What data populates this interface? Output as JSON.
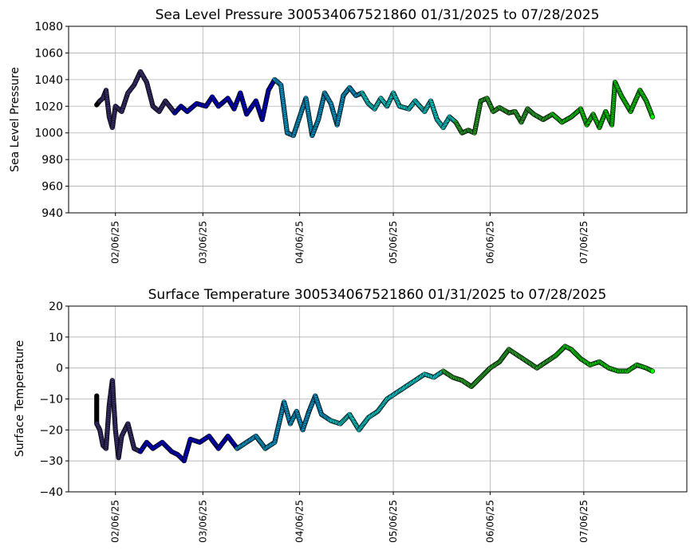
{
  "chart_data": [
    {
      "type": "scatter",
      "title": "Sea Level Pressure 300534067521860  01/31/2025 to 07/28/2025",
      "xlabel": "",
      "ylabel": "Sea Level Pressure",
      "ylim": [
        940,
        1080
      ],
      "yticks": [
        940,
        960,
        980,
        1000,
        1020,
        1040,
        1060,
        1080
      ],
      "xlim": [
        "2025-01-22",
        "2025-08-08"
      ],
      "xticks": [
        "2025-02-06",
        "2025-03-06",
        "2025-04-06",
        "2025-05-06",
        "2025-06-06",
        "2025-07-06"
      ],
      "xtick_labels": [
        "02/06/25",
        "03/06/25",
        "04/06/25",
        "05/06/25",
        "06/06/25",
        "07/06/25"
      ],
      "grid": true,
      "colors": [
        "#000000",
        "#483d8b",
        "#0000ff",
        "#00bfff",
        "#00ffff",
        "#32cd32",
        "#00ff00"
      ],
      "points": [
        [
          "2025-01-31",
          1021
        ],
        [
          "2025-02-01",
          1024
        ],
        [
          "2025-02-02",
          1026
        ],
        [
          "2025-02-03",
          1032
        ],
        [
          "2025-02-04",
          1012
        ],
        [
          "2025-02-05",
          1004
        ],
        [
          "2025-02-06",
          1020
        ],
        [
          "2025-02-08",
          1016
        ],
        [
          "2025-02-10",
          1030
        ],
        [
          "2025-02-12",
          1036
        ],
        [
          "2025-02-14",
          1046
        ],
        [
          "2025-02-16",
          1038
        ],
        [
          "2025-02-18",
          1020
        ],
        [
          "2025-02-20",
          1016
        ],
        [
          "2025-02-22",
          1024
        ],
        [
          "2025-02-25",
          1015
        ],
        [
          "2025-02-27",
          1020
        ],
        [
          "2025-03-01",
          1016
        ],
        [
          "2025-03-04",
          1022
        ],
        [
          "2025-03-07",
          1020
        ],
        [
          "2025-03-09",
          1027
        ],
        [
          "2025-03-11",
          1020
        ],
        [
          "2025-03-14",
          1026
        ],
        [
          "2025-03-16",
          1018
        ],
        [
          "2025-03-18",
          1030
        ],
        [
          "2025-03-20",
          1014
        ],
        [
          "2025-03-23",
          1024
        ],
        [
          "2025-03-25",
          1010
        ],
        [
          "2025-03-27",
          1032
        ],
        [
          "2025-03-29",
          1040
        ],
        [
          "2025-03-31",
          1036
        ],
        [
          "2025-04-02",
          1000
        ],
        [
          "2025-04-04",
          998
        ],
        [
          "2025-04-06",
          1012
        ],
        [
          "2025-04-08",
          1026
        ],
        [
          "2025-04-10",
          998
        ],
        [
          "2025-04-12",
          1010
        ],
        [
          "2025-04-14",
          1030
        ],
        [
          "2025-04-16",
          1022
        ],
        [
          "2025-04-18",
          1006
        ],
        [
          "2025-04-20",
          1028
        ],
        [
          "2025-04-22",
          1034
        ],
        [
          "2025-04-24",
          1028
        ],
        [
          "2025-04-26",
          1030
        ],
        [
          "2025-04-28",
          1022
        ],
        [
          "2025-04-30",
          1018
        ],
        [
          "2025-05-02",
          1026
        ],
        [
          "2025-05-04",
          1020
        ],
        [
          "2025-05-06",
          1030
        ],
        [
          "2025-05-08",
          1020
        ],
        [
          "2025-05-11",
          1018
        ],
        [
          "2025-05-13",
          1024
        ],
        [
          "2025-05-16",
          1016
        ],
        [
          "2025-05-18",
          1024
        ],
        [
          "2025-05-20",
          1010
        ],
        [
          "2025-05-22",
          1004
        ],
        [
          "2025-05-24",
          1012
        ],
        [
          "2025-05-26",
          1008
        ],
        [
          "2025-05-28",
          1000
        ],
        [
          "2025-05-30",
          1002
        ],
        [
          "2025-06-01",
          1000
        ],
        [
          "2025-06-03",
          1024
        ],
        [
          "2025-06-05",
          1026
        ],
        [
          "2025-06-07",
          1016
        ],
        [
          "2025-06-09",
          1019
        ],
        [
          "2025-06-12",
          1015
        ],
        [
          "2025-06-14",
          1016
        ],
        [
          "2025-06-16",
          1008
        ],
        [
          "2025-06-18",
          1018
        ],
        [
          "2025-06-20",
          1014
        ],
        [
          "2025-06-23",
          1010
        ],
        [
          "2025-06-26",
          1014
        ],
        [
          "2025-06-29",
          1008
        ],
        [
          "2025-07-02",
          1012
        ],
        [
          "2025-07-05",
          1018
        ],
        [
          "2025-07-07",
          1006
        ],
        [
          "2025-07-09",
          1014
        ],
        [
          "2025-07-11",
          1004
        ],
        [
          "2025-07-13",
          1016
        ],
        [
          "2025-07-15",
          1006
        ],
        [
          "2025-07-16",
          1038
        ],
        [
          "2025-07-18",
          1028
        ],
        [
          "2025-07-21",
          1016
        ],
        [
          "2025-07-24",
          1032
        ],
        [
          "2025-07-26",
          1024
        ],
        [
          "2025-07-28",
          1012
        ]
      ]
    },
    {
      "type": "scatter",
      "title": "Surface Temperature 300534067521860  01/31/2025 to 07/28/2025",
      "xlabel": "",
      "ylabel": "Surface Temperature",
      "ylim": [
        -40,
        20
      ],
      "yticks": [
        -40,
        -30,
        -20,
        -10,
        0,
        10,
        20
      ],
      "xlim": [
        "2025-01-22",
        "2025-08-08"
      ],
      "xticks": [
        "2025-02-06",
        "2025-03-06",
        "2025-04-06",
        "2025-05-06",
        "2025-06-06",
        "2025-07-06"
      ],
      "xtick_labels": [
        "02/06/25",
        "03/06/25",
        "04/06/25",
        "05/06/25",
        "06/06/25",
        "07/06/25"
      ],
      "grid": true,
      "colors": [
        "#000000",
        "#483d8b",
        "#0000ff",
        "#00bfff",
        "#00ffff",
        "#32cd32",
        "#00ff00"
      ],
      "points": [
        [
          "2025-01-31",
          -9
        ],
        [
          "2025-01-31",
          -18
        ],
        [
          "2025-02-01",
          -20
        ],
        [
          "2025-02-02",
          -25
        ],
        [
          "2025-02-03",
          -26
        ],
        [
          "2025-02-04",
          -12
        ],
        [
          "2025-02-05",
          -4
        ],
        [
          "2025-02-06",
          -20
        ],
        [
          "2025-02-07",
          -29
        ],
        [
          "2025-02-08",
          -22
        ],
        [
          "2025-02-10",
          -18
        ],
        [
          "2025-02-12",
          -26
        ],
        [
          "2025-02-14",
          -27
        ],
        [
          "2025-02-16",
          -24
        ],
        [
          "2025-02-18",
          -26
        ],
        [
          "2025-02-21",
          -24
        ],
        [
          "2025-02-24",
          -27
        ],
        [
          "2025-02-26",
          -28
        ],
        [
          "2025-02-28",
          -30
        ],
        [
          "2025-03-02",
          -23
        ],
        [
          "2025-03-05",
          -24
        ],
        [
          "2025-03-08",
          -22
        ],
        [
          "2025-03-11",
          -26
        ],
        [
          "2025-03-14",
          -22
        ],
        [
          "2025-03-17",
          -26
        ],
        [
          "2025-03-20",
          -24
        ],
        [
          "2025-03-23",
          -22
        ],
        [
          "2025-03-26",
          -26
        ],
        [
          "2025-03-29",
          -24
        ],
        [
          "2025-04-01",
          -11
        ],
        [
          "2025-04-03",
          -18
        ],
        [
          "2025-04-05",
          -14
        ],
        [
          "2025-04-07",
          -20
        ],
        [
          "2025-04-09",
          -14
        ],
        [
          "2025-04-11",
          -9
        ],
        [
          "2025-04-13",
          -15
        ],
        [
          "2025-04-16",
          -17
        ],
        [
          "2025-04-19",
          -18
        ],
        [
          "2025-04-22",
          -15
        ],
        [
          "2025-04-25",
          -20
        ],
        [
          "2025-04-28",
          -16
        ],
        [
          "2025-05-01",
          -14
        ],
        [
          "2025-05-04",
          -10
        ],
        [
          "2025-05-07",
          -8
        ],
        [
          "2025-05-10",
          -6
        ],
        [
          "2025-05-13",
          -4
        ],
        [
          "2025-05-16",
          -2
        ],
        [
          "2025-05-19",
          -3
        ],
        [
          "2025-05-22",
          -1
        ],
        [
          "2025-05-25",
          -3
        ],
        [
          "2025-05-28",
          -4
        ],
        [
          "2025-05-31",
          -6
        ],
        [
          "2025-06-03",
          -3
        ],
        [
          "2025-06-06",
          0
        ],
        [
          "2025-06-09",
          2
        ],
        [
          "2025-06-12",
          6
        ],
        [
          "2025-06-15",
          4
        ],
        [
          "2025-06-18",
          2
        ],
        [
          "2025-06-21",
          0
        ],
        [
          "2025-06-24",
          2
        ],
        [
          "2025-06-27",
          4
        ],
        [
          "2025-06-30",
          7
        ],
        [
          "2025-07-02",
          6
        ],
        [
          "2025-07-05",
          3
        ],
        [
          "2025-07-08",
          1
        ],
        [
          "2025-07-11",
          2
        ],
        [
          "2025-07-14",
          0
        ],
        [
          "2025-07-17",
          -1
        ],
        [
          "2025-07-20",
          -1
        ],
        [
          "2025-07-23",
          1
        ],
        [
          "2025-07-26",
          0
        ],
        [
          "2025-07-28",
          -1
        ]
      ]
    }
  ]
}
